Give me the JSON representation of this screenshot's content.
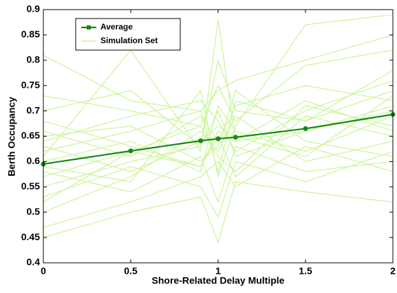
{
  "chart_data": {
    "type": "line",
    "x_label": "Shore-Related Delay Multiple",
    "y_label": "Berth Occupancy",
    "x": [
      0,
      0.5,
      0.9,
      1,
      1.1,
      1.5,
      2
    ],
    "series": [
      {
        "name": "Average",
        "color": "#138a13",
        "values": [
          0.595,
          0.621,
          0.641,
          0.645,
          0.648,
          0.665,
          0.693
        ]
      }
    ],
    "simulation_set": {
      "name": "Simulation Set",
      "color": "#ccf5a0",
      "runs": [
        [
          0.62,
          0.66,
          0.7,
          0.58,
          0.72,
          0.68,
          0.74
        ],
        [
          0.55,
          0.6,
          0.63,
          0.7,
          0.61,
          0.66,
          0.71
        ],
        [
          0.68,
          0.63,
          0.59,
          0.66,
          0.64,
          0.72,
          0.66
        ],
        [
          0.5,
          0.57,
          0.66,
          0.62,
          0.69,
          0.6,
          0.64
        ],
        [
          0.73,
          0.7,
          0.67,
          0.75,
          0.68,
          0.79,
          0.82
        ],
        [
          0.58,
          0.54,
          0.61,
          0.52,
          0.63,
          0.58,
          0.6
        ],
        [
          0.64,
          0.69,
          0.72,
          0.68,
          0.62,
          0.7,
          0.76
        ],
        [
          0.47,
          0.52,
          0.57,
          0.6,
          0.55,
          0.63,
          0.58
        ],
        [
          0.6,
          0.64,
          0.58,
          0.71,
          0.66,
          0.62,
          0.69
        ],
        [
          0.66,
          0.61,
          0.69,
          0.64,
          0.71,
          0.75,
          0.72
        ],
        [
          0.53,
          0.59,
          0.55,
          0.49,
          0.6,
          0.56,
          0.62
        ],
        [
          0.7,
          0.74,
          0.63,
          0.8,
          0.7,
          0.68,
          0.78
        ],
        [
          0.57,
          0.62,
          0.67,
          0.61,
          0.58,
          0.71,
          0.67
        ],
        [
          0.63,
          0.58,
          0.64,
          0.67,
          0.65,
          0.61,
          0.73
        ],
        [
          0.81,
          0.72,
          0.7,
          0.74,
          0.76,
          0.8,
          0.85
        ],
        [
          0.45,
          0.5,
          0.53,
          0.44,
          0.56,
          0.54,
          0.52
        ],
        [
          0.61,
          0.82,
          0.62,
          0.88,
          0.64,
          0.66,
          0.7
        ],
        [
          0.59,
          0.56,
          0.74,
          0.57,
          0.67,
          0.87,
          0.89
        ],
        [
          0.65,
          0.67,
          0.6,
          0.63,
          0.74,
          0.64,
          0.61
        ],
        [
          0.52,
          0.62,
          0.59,
          0.65,
          0.57,
          0.69,
          0.65
        ]
      ]
    },
    "xlim": [
      0,
      2
    ],
    "xticks": [
      0,
      0.5,
      1,
      1.5,
      2
    ],
    "ylim": [
      0.4,
      0.9
    ],
    "yticks": [
      0.4,
      0.45,
      0.5,
      0.55,
      0.6,
      0.65,
      0.7,
      0.75,
      0.8,
      0.85,
      0.9
    ],
    "grid": false,
    "legend": "upper-left"
  }
}
